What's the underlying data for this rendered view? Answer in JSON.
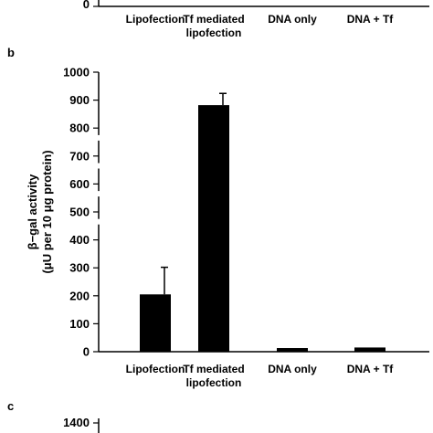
{
  "chart_data": [
    {
      "panel": "a",
      "type": "bar",
      "partial": true,
      "categories": [
        [
          "Lipofection"
        ],
        [
          "Tf mediated",
          "lipofection"
        ],
        [
          "DNA only"
        ],
        [
          "DNA + Tf"
        ]
      ],
      "visible_tick_labels": [
        "0"
      ]
    },
    {
      "panel": "b",
      "type": "bar",
      "categories": [
        [
          "Lipofection"
        ],
        [
          "Tf mediated",
          "lipofection"
        ],
        [
          "DNA only"
        ],
        [
          "DNA + Tf"
        ]
      ],
      "values": [
        205,
        882,
        13,
        15
      ],
      "errors": [
        97,
        42,
        0,
        0
      ],
      "ylim": [
        0,
        1000
      ],
      "yticks": [
        0,
        100,
        200,
        300,
        400,
        500,
        600,
        700,
        800,
        900,
        1000
      ],
      "ylabel_lines": [
        "β−gal activity",
        "(μU per 10 μg protein)"
      ],
      "axis_break": true,
      "grid": false,
      "bar_color": "#000000"
    },
    {
      "panel": "c",
      "type": "bar",
      "partial": true,
      "visible_tick_labels": [
        "1400"
      ]
    }
  ],
  "panels": {
    "a": "",
    "b": "b",
    "c": "c"
  }
}
